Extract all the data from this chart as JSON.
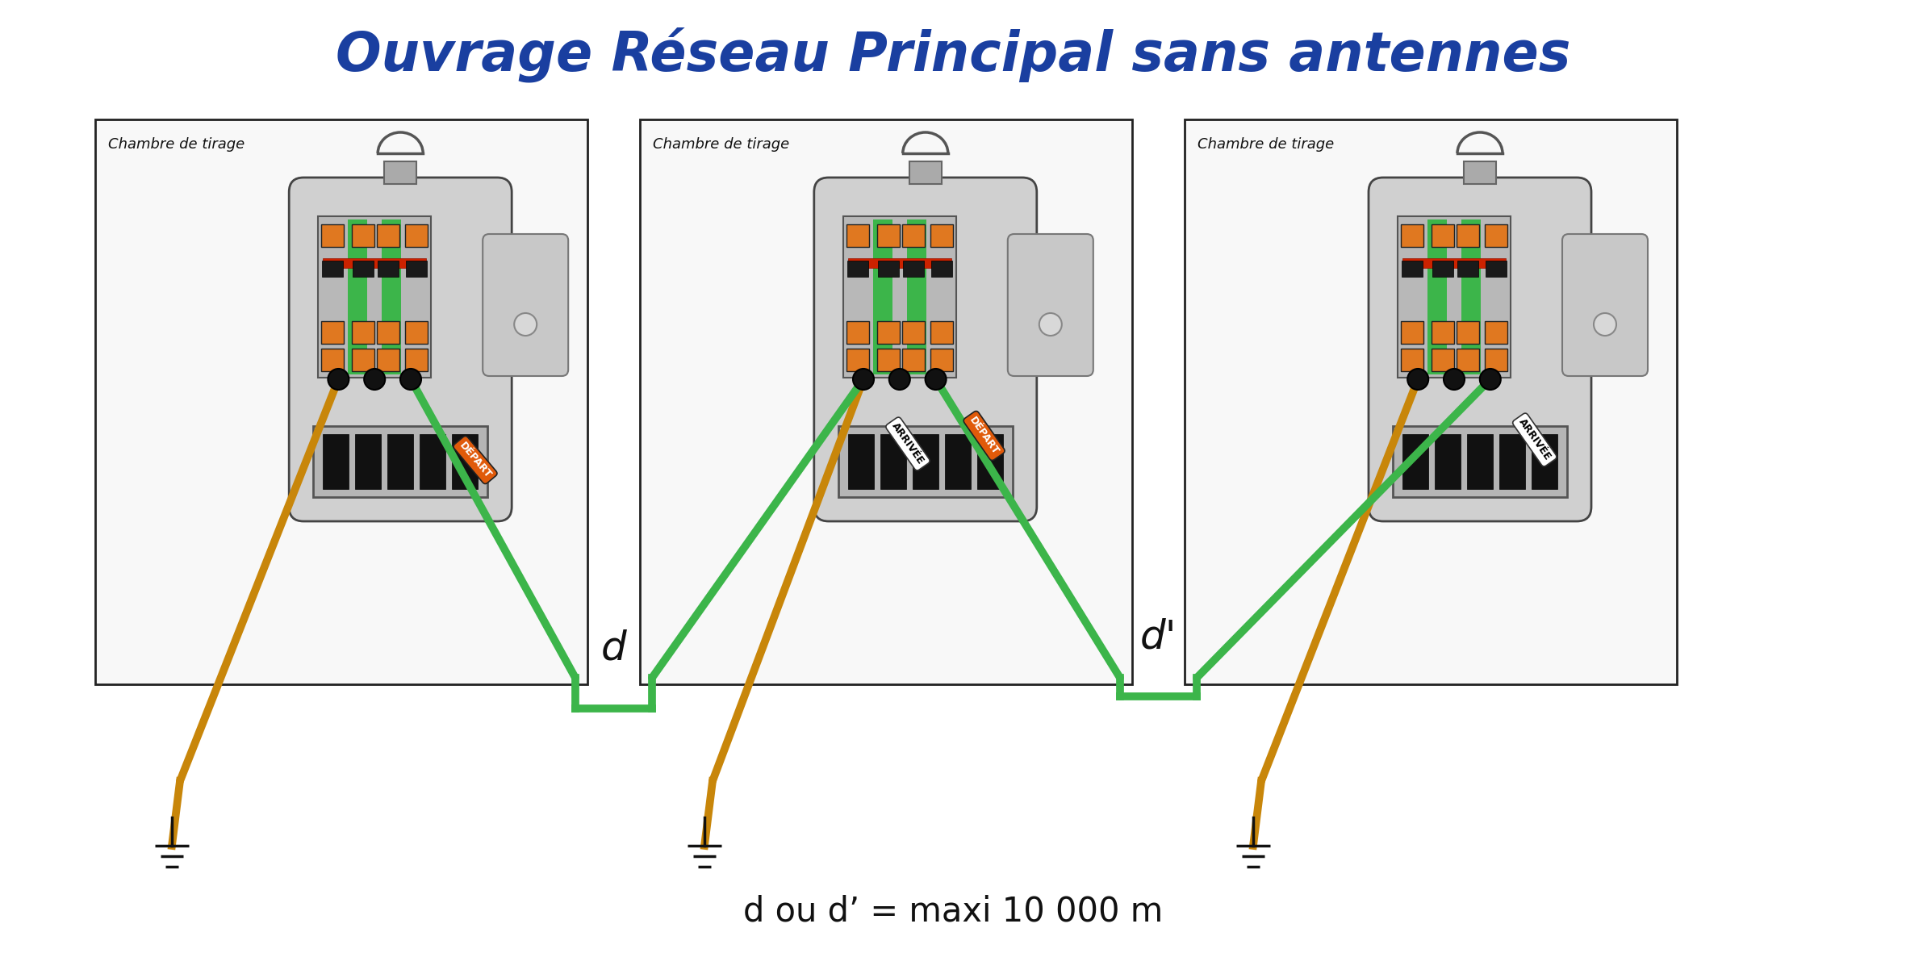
{
  "title": "Ouvrage Réseau Principal sans antennes",
  "title_color": "#1a3fa0",
  "title_fontsize": 48,
  "background_color": "#ffffff",
  "chambre_label": "Chambre de tirage",
  "green_wire_color": "#3cb54a",
  "orange_wire_color": "#c8860a",
  "label_d": "d",
  "label_d_prime": "d’",
  "label_distance": "d ou d’ = maxi 10 000 m",
  "orange_tag_color": "#e05a0a",
  "white_tag_color": "#ffffff",
  "tag_depart_text": "DÉPART",
  "tag_arrivee_text": "ARRIVÉE"
}
